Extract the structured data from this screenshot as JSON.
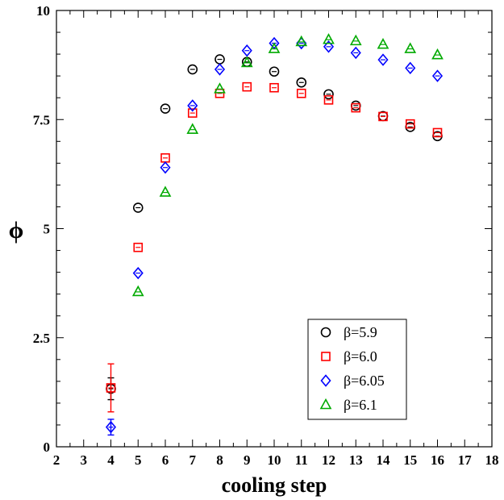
{
  "chart_data": {
    "type": "scatter",
    "xlabel": "cooling step",
    "ylabel": "ϕ",
    "xlim": [
      2,
      18
    ],
    "ylim": [
      0,
      10
    ],
    "x_ticks": [
      "2",
      "3",
      "4",
      "5",
      "6",
      "7",
      "8",
      "9",
      "10",
      "11",
      "12",
      "13",
      "14",
      "15",
      "16",
      "17",
      "18"
    ],
    "y_ticks": [
      "0",
      "2.5",
      "5",
      "7.5",
      "10"
    ],
    "legend_position": "bottom-right",
    "series": [
      {
        "name": "β=5.9",
        "color": "#000000",
        "marker": "circle",
        "points": [
          {
            "x": 4,
            "y": 1.33,
            "err": 0.25
          },
          {
            "x": 5,
            "y": 5.48
          },
          {
            "x": 6,
            "y": 7.75
          },
          {
            "x": 7,
            "y": 8.65
          },
          {
            "x": 8,
            "y": 8.88
          },
          {
            "x": 9,
            "y": 8.82
          },
          {
            "x": 10,
            "y": 8.6
          },
          {
            "x": 11,
            "y": 8.35
          },
          {
            "x": 12,
            "y": 8.08
          },
          {
            "x": 13,
            "y": 7.82
          },
          {
            "x": 14,
            "y": 7.58
          },
          {
            "x": 15,
            "y": 7.33
          },
          {
            "x": 16,
            "y": 7.12
          }
        ]
      },
      {
        "name": "β=6.0",
        "color": "#ff0000",
        "marker": "square",
        "points": [
          {
            "x": 4,
            "y": 1.35,
            "err": 0.55
          },
          {
            "x": 5,
            "y": 4.57
          },
          {
            "x": 6,
            "y": 6.62
          },
          {
            "x": 7,
            "y": 7.65
          },
          {
            "x": 8,
            "y": 8.1
          },
          {
            "x": 9,
            "y": 8.25
          },
          {
            "x": 10,
            "y": 8.23
          },
          {
            "x": 11,
            "y": 8.1
          },
          {
            "x": 12,
            "y": 7.95
          },
          {
            "x": 13,
            "y": 7.77
          },
          {
            "x": 14,
            "y": 7.57
          },
          {
            "x": 15,
            "y": 7.4
          },
          {
            "x": 16,
            "y": 7.2
          }
        ]
      },
      {
        "name": "β=6.05",
        "color": "#0000ff",
        "marker": "diamond",
        "points": [
          {
            "x": 4,
            "y": 0.45,
            "err": 0.18
          },
          {
            "x": 5,
            "y": 3.98
          },
          {
            "x": 6,
            "y": 6.4
          },
          {
            "x": 7,
            "y": 7.82
          },
          {
            "x": 8,
            "y": 8.65
          },
          {
            "x": 9,
            "y": 9.08
          },
          {
            "x": 10,
            "y": 9.25
          },
          {
            "x": 11,
            "y": 9.25
          },
          {
            "x": 12,
            "y": 9.17
          },
          {
            "x": 13,
            "y": 9.03
          },
          {
            "x": 14,
            "y": 8.87
          },
          {
            "x": 15,
            "y": 8.68
          },
          {
            "x": 16,
            "y": 8.5
          }
        ]
      },
      {
        "name": "β=6.1",
        "color": "#00aa00",
        "marker": "triangle",
        "points": [
          {
            "x": 5,
            "y": 3.55
          },
          {
            "x": 6,
            "y": 5.83
          },
          {
            "x": 7,
            "y": 7.27
          },
          {
            "x": 8,
            "y": 8.2
          },
          {
            "x": 9,
            "y": 8.8
          },
          {
            "x": 10,
            "y": 9.12
          },
          {
            "x": 11,
            "y": 9.28
          },
          {
            "x": 12,
            "y": 9.33
          },
          {
            "x": 13,
            "y": 9.3
          },
          {
            "x": 14,
            "y": 9.22
          },
          {
            "x": 15,
            "y": 9.12
          },
          {
            "x": 16,
            "y": 8.98
          }
        ]
      }
    ]
  }
}
